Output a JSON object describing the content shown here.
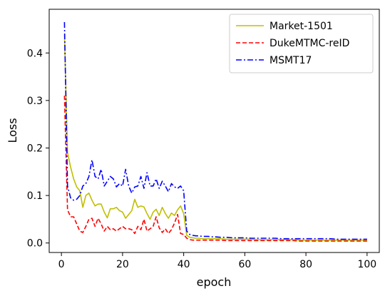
{
  "chart_data": {
    "type": "line",
    "title": "",
    "xlabel": "epoch",
    "ylabel": "Loss",
    "xlim": [
      -4,
      104
    ],
    "ylim": [
      -0.02,
      0.492
    ],
    "xticks": [
      0,
      20,
      40,
      60,
      80,
      100
    ],
    "yticks": [
      0.0,
      0.1,
      0.2,
      0.3,
      0.4
    ],
    "ytick_labels": [
      "0.0",
      "0.1",
      "0.2",
      "0.3",
      "0.4"
    ],
    "grid": false,
    "legend_position": "top-right",
    "series": [
      {
        "name": "Market-1501",
        "color": "#bfbf00",
        "dash": "solid",
        "x": [
          1,
          2,
          3,
          4,
          5,
          6,
          7,
          8,
          9,
          10,
          11,
          12,
          13,
          14,
          15,
          16,
          17,
          18,
          19,
          20,
          21,
          22,
          23,
          24,
          25,
          26,
          27,
          28,
          29,
          30,
          31,
          32,
          33,
          34,
          35,
          36,
          37,
          38,
          39,
          40,
          41,
          42,
          43,
          44,
          45,
          46,
          47,
          48,
          49,
          50,
          52,
          54,
          56,
          58,
          60,
          62,
          64,
          66,
          68,
          70,
          72,
          74,
          76,
          78,
          80,
          82,
          84,
          86,
          88,
          90,
          92,
          94,
          96,
          98,
          100
        ],
        "y": [
          0.44,
          0.19,
          0.16,
          0.135,
          0.118,
          0.11,
          0.075,
          0.1,
          0.105,
          0.09,
          0.078,
          0.082,
          0.082,
          0.065,
          0.053,
          0.072,
          0.072,
          0.075,
          0.068,
          0.065,
          0.052,
          0.06,
          0.068,
          0.092,
          0.075,
          0.078,
          0.076,
          0.062,
          0.05,
          0.065,
          0.071,
          0.058,
          0.075,
          0.062,
          0.052,
          0.063,
          0.058,
          0.07,
          0.078,
          0.062,
          0.016,
          0.012,
          0.011,
          0.01,
          0.01,
          0.009,
          0.009,
          0.009,
          0.009,
          0.009,
          0.009,
          0.008,
          0.008,
          0.008,
          0.008,
          0.008,
          0.007,
          0.007,
          0.007,
          0.007,
          0.007,
          0.007,
          0.007,
          0.006,
          0.006,
          0.006,
          0.006,
          0.006,
          0.006,
          0.006,
          0.006,
          0.006,
          0.006,
          0.006,
          0.006
        ]
      },
      {
        "name": "DukeMTMC-reID",
        "color": "#ff0000",
        "dash": "dashed",
        "x": [
          1,
          2,
          3,
          4,
          5,
          6,
          7,
          8,
          9,
          10,
          11,
          12,
          13,
          14,
          15,
          16,
          17,
          18,
          19,
          20,
          21,
          22,
          23,
          24,
          25,
          26,
          27,
          28,
          29,
          30,
          31,
          32,
          33,
          34,
          35,
          36,
          37,
          38,
          39,
          40,
          41,
          42,
          43,
          44,
          45,
          46,
          47,
          48,
          49,
          50,
          52,
          54,
          56,
          58,
          60,
          62,
          64,
          66,
          68,
          70,
          72,
          74,
          76,
          78,
          80,
          82,
          84,
          86,
          88,
          90,
          92,
          94,
          96,
          98,
          100
        ],
        "y": [
          0.31,
          0.07,
          0.055,
          0.055,
          0.04,
          0.025,
          0.022,
          0.035,
          0.05,
          0.052,
          0.035,
          0.052,
          0.04,
          0.025,
          0.035,
          0.028,
          0.03,
          0.025,
          0.03,
          0.035,
          0.03,
          0.03,
          0.028,
          0.02,
          0.035,
          0.028,
          0.05,
          0.025,
          0.03,
          0.035,
          0.055,
          0.032,
          0.022,
          0.03,
          0.02,
          0.028,
          0.042,
          0.06,
          0.02,
          0.018,
          0.01,
          0.007,
          0.006,
          0.006,
          0.006,
          0.006,
          0.006,
          0.006,
          0.006,
          0.006,
          0.006,
          0.005,
          0.005,
          0.005,
          0.005,
          0.005,
          0.005,
          0.005,
          0.005,
          0.005,
          0.005,
          0.005,
          0.005,
          0.004,
          0.004,
          0.004,
          0.004,
          0.004,
          0.004,
          0.004,
          0.004,
          0.004,
          0.004,
          0.004,
          0.004
        ]
      },
      {
        "name": "MSMT17",
        "color": "#0000ff",
        "dash": "dashdot",
        "x": [
          1,
          2,
          3,
          4,
          5,
          6,
          7,
          8,
          9,
          10,
          11,
          12,
          13,
          14,
          15,
          16,
          17,
          18,
          19,
          20,
          21,
          22,
          23,
          24,
          25,
          26,
          27,
          28,
          29,
          30,
          31,
          32,
          33,
          34,
          35,
          36,
          37,
          38,
          39,
          40,
          41,
          42,
          43,
          44,
          45,
          46,
          47,
          48,
          49,
          50,
          52,
          54,
          56,
          58,
          60,
          62,
          64,
          66,
          68,
          70,
          72,
          74,
          76,
          78,
          80,
          82,
          84,
          86,
          88,
          90,
          92,
          94,
          96,
          98,
          100
        ],
        "y": [
          0.465,
          0.12,
          0.095,
          0.09,
          0.092,
          0.1,
          0.12,
          0.125,
          0.14,
          0.175,
          0.14,
          0.135,
          0.155,
          0.12,
          0.13,
          0.14,
          0.135,
          0.118,
          0.125,
          0.12,
          0.155,
          0.12,
          0.105,
          0.118,
          0.12,
          0.14,
          0.115,
          0.148,
          0.12,
          0.12,
          0.135,
          0.115,
          0.13,
          0.12,
          0.108,
          0.125,
          0.118,
          0.115,
          0.12,
          0.11,
          0.025,
          0.018,
          0.016,
          0.015,
          0.015,
          0.014,
          0.014,
          0.014,
          0.013,
          0.013,
          0.012,
          0.012,
          0.011,
          0.011,
          0.011,
          0.01,
          0.01,
          0.01,
          0.01,
          0.01,
          0.009,
          0.009,
          0.009,
          0.009,
          0.009,
          0.009,
          0.009,
          0.009,
          0.009,
          0.008,
          0.008,
          0.008,
          0.008,
          0.008,
          0.008
        ]
      }
    ]
  }
}
